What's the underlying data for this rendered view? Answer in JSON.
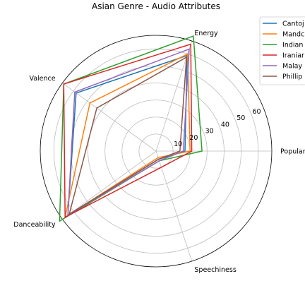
{
  "chart_data": {
    "type": "radar",
    "title": "Asian Genre - Audio Attributes",
    "axes": [
      "Popularity",
      "Energy",
      "Valence",
      "Danceability",
      "Speechiness"
    ],
    "rticks": [
      10,
      20,
      30,
      40,
      50,
      60
    ],
    "rlim": [
      0,
      68
    ],
    "grid": true,
    "legend_position": "top-right",
    "series": [
      {
        "name": "Cantoj",
        "color": "#1f77b4",
        "values": [
          17,
          59,
          58,
          64,
          5
        ]
      },
      {
        "name": "Mandc",
        "color": "#ff7f0e",
        "values": [
          20,
          60,
          48,
          66,
          4
        ]
      },
      {
        "name": "Indian",
        "color": "#2ca02c",
        "values": [
          27,
          71,
          67,
          70,
          6
        ]
      },
      {
        "name": "Iraniar",
        "color": "#d62728",
        "values": [
          21,
          66,
          67,
          66,
          10
        ]
      },
      {
        "name": "Malay",
        "color": "#9467bd",
        "values": [
          16,
          63,
          59,
          64,
          6
        ]
      },
      {
        "name": "Phillip",
        "color": "#8c564b",
        "values": [
          14,
          58,
          43,
          63,
          5
        ]
      }
    ]
  }
}
